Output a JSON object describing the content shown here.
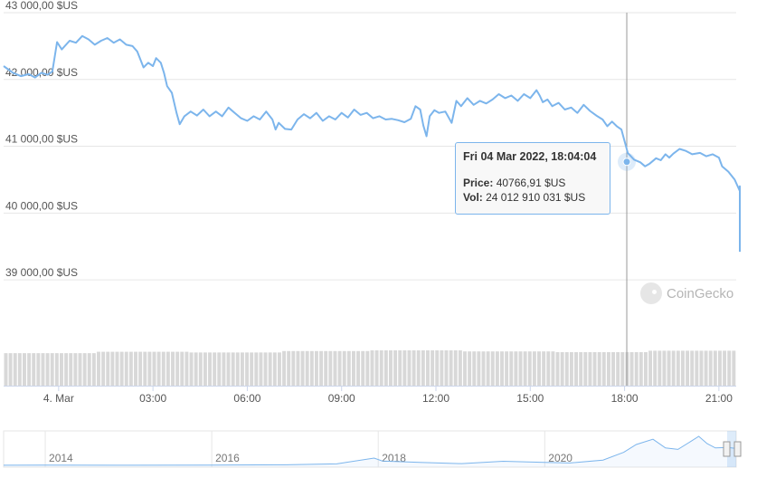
{
  "chart_data": {
    "type": "line",
    "title": "",
    "xlabel": "",
    "ylabel": "",
    "y_unit": "$US",
    "ylim": [
      38500,
      43000
    ],
    "y_ticks": [
      "43 000,00 $US",
      "42 000,00 $US",
      "41 000,00 $US",
      "40 000,00 $US",
      "39 000,00 $US"
    ],
    "x_ticks": [
      "4. Mar",
      "03:00",
      "06:00",
      "09:00",
      "12:00",
      "15:00",
      "18:00",
      "21:00"
    ],
    "x_tick_hours": [
      0,
      3,
      6,
      9,
      12,
      15,
      18,
      21
    ],
    "x_range_hours": [
      -1.75,
      21.55
    ],
    "grid": true,
    "legend": "none",
    "series": [
      {
        "name": "Price",
        "color": "#7cb5ec",
        "points": [
          [
            -1.75,
            42200
          ],
          [
            -1.45,
            42100
          ],
          [
            -1.2,
            42050
          ],
          [
            -0.95,
            42080
          ],
          [
            -0.75,
            42030
          ],
          [
            -0.55,
            42100
          ],
          [
            -0.35,
            42070
          ],
          [
            -0.2,
            42120
          ],
          [
            -0.05,
            42560
          ],
          [
            0.1,
            42450
          ],
          [
            0.35,
            42580
          ],
          [
            0.55,
            42550
          ],
          [
            0.75,
            42650
          ],
          [
            0.95,
            42600
          ],
          [
            1.15,
            42520
          ],
          [
            1.35,
            42580
          ],
          [
            1.55,
            42620
          ],
          [
            1.75,
            42550
          ],
          [
            1.95,
            42600
          ],
          [
            2.15,
            42520
          ],
          [
            2.35,
            42500
          ],
          [
            2.5,
            42420
          ],
          [
            2.6,
            42300
          ],
          [
            2.7,
            42180
          ],
          [
            2.85,
            42250
          ],
          [
            3.0,
            42200
          ],
          [
            3.1,
            42320
          ],
          [
            3.25,
            42250
          ],
          [
            3.35,
            42100
          ],
          [
            3.45,
            41900
          ],
          [
            3.6,
            41800
          ],
          [
            3.75,
            41500
          ],
          [
            3.85,
            41330
          ],
          [
            4.0,
            41450
          ],
          [
            4.2,
            41520
          ],
          [
            4.4,
            41460
          ],
          [
            4.6,
            41550
          ],
          [
            4.8,
            41450
          ],
          [
            5.0,
            41520
          ],
          [
            5.2,
            41450
          ],
          [
            5.4,
            41580
          ],
          [
            5.6,
            41500
          ],
          [
            5.8,
            41420
          ],
          [
            6.0,
            41380
          ],
          [
            6.2,
            41450
          ],
          [
            6.4,
            41400
          ],
          [
            6.6,
            41520
          ],
          [
            6.8,
            41400
          ],
          [
            6.9,
            41250
          ],
          [
            7.0,
            41350
          ],
          [
            7.2,
            41260
          ],
          [
            7.4,
            41250
          ],
          [
            7.6,
            41400
          ],
          [
            7.8,
            41480
          ],
          [
            8.0,
            41420
          ],
          [
            8.2,
            41500
          ],
          [
            8.4,
            41380
          ],
          [
            8.6,
            41450
          ],
          [
            8.8,
            41400
          ],
          [
            9.0,
            41500
          ],
          [
            9.2,
            41430
          ],
          [
            9.4,
            41550
          ],
          [
            9.6,
            41470
          ],
          [
            9.8,
            41500
          ],
          [
            10.0,
            41420
          ],
          [
            10.2,
            41450
          ],
          [
            10.4,
            41400
          ],
          [
            10.6,
            41410
          ],
          [
            10.8,
            41390
          ],
          [
            11.0,
            41360
          ],
          [
            11.2,
            41410
          ],
          [
            11.35,
            41600
          ],
          [
            11.5,
            41550
          ],
          [
            11.6,
            41310
          ],
          [
            11.7,
            41150
          ],
          [
            11.8,
            41450
          ],
          [
            11.95,
            41540
          ],
          [
            12.1,
            41500
          ],
          [
            12.3,
            41520
          ],
          [
            12.5,
            41350
          ],
          [
            12.65,
            41680
          ],
          [
            12.8,
            41600
          ],
          [
            13.0,
            41720
          ],
          [
            13.2,
            41620
          ],
          [
            13.4,
            41680
          ],
          [
            13.6,
            41640
          ],
          [
            13.8,
            41700
          ],
          [
            14.0,
            41780
          ],
          [
            14.2,
            41720
          ],
          [
            14.4,
            41760
          ],
          [
            14.6,
            41680
          ],
          [
            14.8,
            41780
          ],
          [
            15.0,
            41720
          ],
          [
            15.2,
            41840
          ],
          [
            15.3,
            41760
          ],
          [
            15.4,
            41660
          ],
          [
            15.55,
            41700
          ],
          [
            15.7,
            41600
          ],
          [
            15.9,
            41650
          ],
          [
            16.1,
            41550
          ],
          [
            16.3,
            41580
          ],
          [
            16.5,
            41500
          ],
          [
            16.7,
            41620
          ],
          [
            16.9,
            41530
          ],
          [
            17.1,
            41460
          ],
          [
            17.3,
            41400
          ],
          [
            17.45,
            41300
          ],
          [
            17.6,
            41370
          ],
          [
            17.75,
            41300
          ],
          [
            17.9,
            41250
          ],
          [
            18.1,
            40900
          ],
          [
            18.3,
            40800
          ],
          [
            18.5,
            40760
          ],
          [
            18.65,
            40700
          ],
          [
            18.8,
            40740
          ],
          [
            19.0,
            40820
          ],
          [
            19.15,
            40790
          ],
          [
            19.3,
            40880
          ],
          [
            19.42,
            40830
          ],
          [
            19.55,
            40890
          ],
          [
            19.75,
            40960
          ],
          [
            19.95,
            40930
          ],
          [
            20.15,
            40880
          ],
          [
            20.4,
            40900
          ],
          [
            20.6,
            40850
          ],
          [
            20.8,
            40880
          ],
          [
            21.0,
            40830
          ],
          [
            21.1,
            40700
          ],
          [
            21.3,
            40620
          ],
          [
            21.5,
            40500
          ],
          [
            21.7,
            40330
          ],
          [
            21.9,
            40400
          ],
          [
            22.1,
            40200
          ],
          [
            22.3,
            40020
          ],
          [
            22.5,
            39850
          ],
          [
            22.65,
            39720
          ],
          [
            22.8,
            39880
          ],
          [
            22.95,
            39780
          ],
          [
            23.1,
            39500
          ],
          [
            23.3,
            39420
          ]
        ]
      }
    ],
    "volume": {
      "bar_count": 158,
      "relative_heights": [
        0.92,
        0.96,
        0.94,
        0.98,
        1.0,
        0.97,
        0.95,
        0.99
      ]
    },
    "tooltip": {
      "title": "Fri 04 Mar 2022, 18:04:04",
      "price_label": "Price:",
      "price_value": "40766,91 $US",
      "vol_label": "Vol:",
      "vol_value": "24 012 910 031 $US",
      "x_hour": 18.07,
      "y_value": 40766.91
    },
    "navigator": {
      "x_ticks": [
        "2014",
        "2016",
        "2018",
        "2020"
      ],
      "x_tick_years": [
        2014,
        2016,
        2018,
        2020
      ],
      "x_range_years": [
        2013.5,
        2022.3
      ],
      "points": [
        [
          2013.5,
          0.002
        ],
        [
          2014.0,
          0.01
        ],
        [
          2015.0,
          0.004
        ],
        [
          2016.0,
          0.008
        ],
        [
          2016.9,
          0.02
        ],
        [
          2017.5,
          0.05
        ],
        [
          2017.95,
          0.25
        ],
        [
          2018.05,
          0.15
        ],
        [
          2018.5,
          0.1
        ],
        [
          2019.0,
          0.06
        ],
        [
          2019.5,
          0.14
        ],
        [
          2020.0,
          0.1
        ],
        [
          2020.3,
          0.08
        ],
        [
          2020.7,
          0.18
        ],
        [
          2020.95,
          0.45
        ],
        [
          2021.1,
          0.72
        ],
        [
          2021.3,
          0.9
        ],
        [
          2021.45,
          0.6
        ],
        [
          2021.6,
          0.55
        ],
        [
          2021.75,
          0.82
        ],
        [
          2021.85,
          1.0
        ],
        [
          2021.95,
          0.75
        ],
        [
          2022.05,
          0.6
        ],
        [
          2022.2,
          0.62
        ],
        [
          2022.3,
          0.58
        ]
      ]
    }
  },
  "watermark": {
    "text": "CoinGecko",
    "icon": "coingecko-logo-icon"
  },
  "colors": {
    "line": "#7cb5ec",
    "grid": "#e6e6e6",
    "volume": "#d8d8d8",
    "crosshair": "#999999"
  }
}
